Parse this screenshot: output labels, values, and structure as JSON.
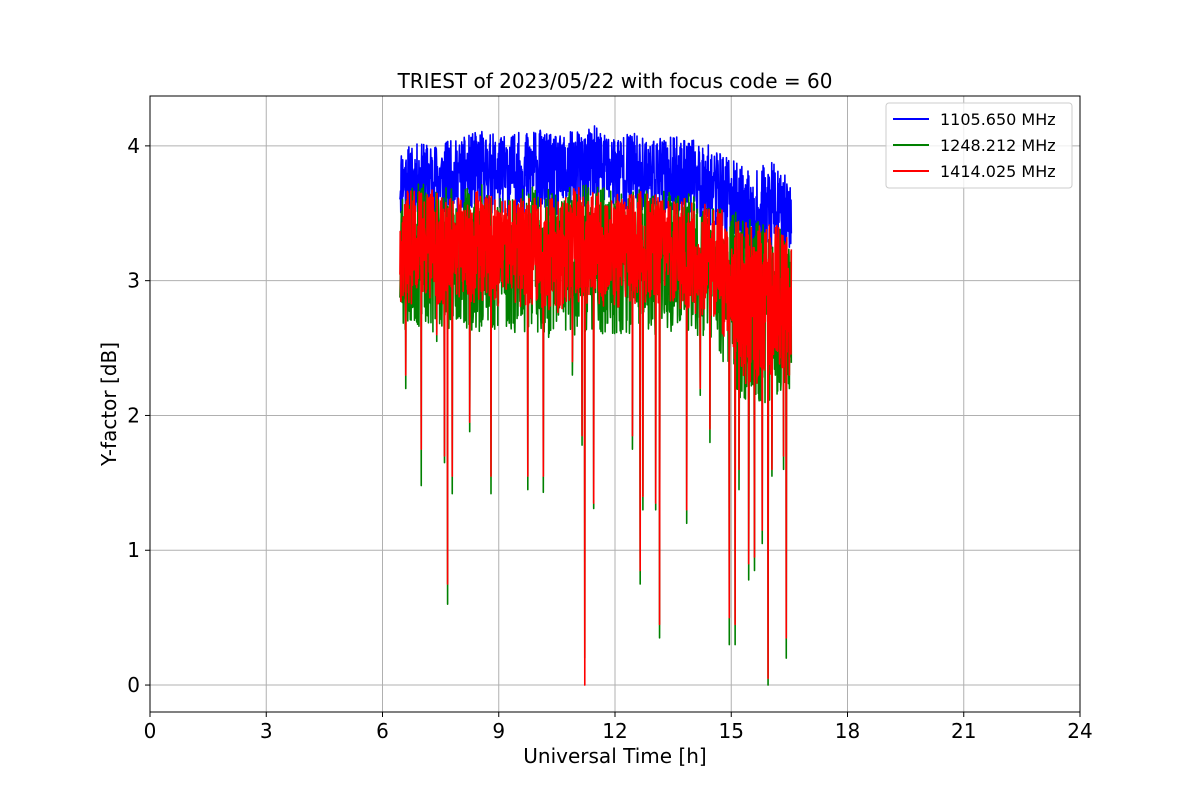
{
  "chart_data": {
    "type": "line",
    "title": "TRIEST of 2023/05/22 with focus code = 60",
    "xlabel": "Universal Time [h]",
    "ylabel": "Y-factor [dB]",
    "xlim": [
      0,
      24
    ],
    "ylim": [
      -0.2,
      4.37
    ],
    "xticks": [
      0,
      3,
      6,
      9,
      12,
      15,
      18,
      21,
      24
    ],
    "yticks": [
      0,
      1,
      2,
      3,
      4
    ],
    "grid": true,
    "legend": "top-right",
    "x_range": [
      6.45,
      16.55
    ],
    "series": [
      {
        "name": "1105.650 MHz",
        "color": "#0000ff",
        "envelope": {
          "x": [
            6.45,
            7.0,
            7.5,
            8.0,
            8.5,
            9.0,
            9.5,
            10.0,
            10.5,
            11.0,
            11.5,
            12.0,
            12.5,
            13.0,
            13.5,
            14.0,
            14.5,
            15.0,
            15.3,
            15.6,
            16.0,
            16.5
          ],
          "upper": [
            4.0,
            4.02,
            4.03,
            4.05,
            4.12,
            4.08,
            4.1,
            4.13,
            4.07,
            4.12,
            4.15,
            4.1,
            4.1,
            4.05,
            4.07,
            4.05,
            4.0,
            3.9,
            3.85,
            3.8,
            3.9,
            3.75
          ],
          "lower": [
            3.45,
            3.5,
            3.45,
            3.5,
            3.5,
            3.5,
            3.45,
            3.5,
            3.45,
            3.5,
            3.5,
            3.5,
            3.5,
            3.5,
            3.45,
            3.45,
            3.4,
            3.3,
            3.15,
            3.1,
            3.15,
            3.2
          ]
        },
        "dips": []
      },
      {
        "name": "1248.212 MHz",
        "color": "#008000",
        "envelope": {
          "x": [
            6.45,
            7.0,
            7.5,
            8.0,
            8.5,
            9.0,
            9.5,
            10.0,
            10.5,
            11.0,
            11.5,
            12.0,
            12.5,
            13.0,
            13.5,
            14.0,
            14.5,
            15.0,
            15.3,
            15.6,
            16.0,
            16.5
          ],
          "upper": [
            3.7,
            3.72,
            3.7,
            3.68,
            3.72,
            3.66,
            3.68,
            3.7,
            3.66,
            3.72,
            3.7,
            3.68,
            3.7,
            3.68,
            3.66,
            3.66,
            3.6,
            3.55,
            3.5,
            3.45,
            3.5,
            3.45
          ],
          "lower": [
            2.55,
            2.65,
            2.6,
            2.65,
            2.6,
            2.6,
            2.6,
            2.6,
            2.55,
            2.6,
            2.6,
            2.6,
            2.6,
            2.6,
            2.6,
            2.55,
            2.5,
            2.3,
            2.0,
            2.0,
            2.1,
            2.2
          ]
        },
        "dips": [
          [
            6.6,
            2.2
          ],
          [
            7.0,
            1.48
          ],
          [
            7.4,
            2.55
          ],
          [
            7.6,
            1.65
          ],
          [
            7.68,
            0.6
          ],
          [
            7.8,
            1.42
          ],
          [
            8.25,
            1.88
          ],
          [
            8.8,
            1.42
          ],
          [
            9.75,
            1.45
          ],
          [
            10.15,
            1.43
          ],
          [
            10.9,
            2.3
          ],
          [
            11.15,
            1.78
          ],
          [
            11.22,
            0.2
          ],
          [
            11.45,
            1.31
          ],
          [
            12.45,
            1.75
          ],
          [
            12.65,
            0.75
          ],
          [
            12.72,
            1.3
          ],
          [
            13.05,
            1.3
          ],
          [
            13.15,
            0.35
          ],
          [
            13.85,
            1.2
          ],
          [
            14.2,
            2.15
          ],
          [
            14.45,
            1.8
          ],
          [
            14.95,
            0.3
          ],
          [
            15.1,
            0.3
          ],
          [
            15.2,
            1.45
          ],
          [
            15.45,
            0.78
          ],
          [
            15.6,
            0.85
          ],
          [
            15.8,
            1.05
          ],
          [
            15.95,
            0.0
          ],
          [
            16.05,
            1.55
          ],
          [
            16.35,
            1.6
          ],
          [
            16.42,
            0.2
          ],
          [
            16.5,
            2.2
          ]
        ]
      },
      {
        "name": "1414.025 MHz",
        "color": "#ff0000",
        "envelope": {
          "x": [
            6.45,
            7.0,
            7.5,
            8.0,
            8.5,
            9.0,
            9.5,
            10.0,
            10.5,
            11.0,
            11.5,
            12.0,
            12.5,
            13.0,
            13.5,
            14.0,
            14.5,
            15.0,
            15.3,
            15.6,
            16.0,
            16.5
          ],
          "upper": [
            3.65,
            3.7,
            3.66,
            3.62,
            3.68,
            3.6,
            3.62,
            3.68,
            3.6,
            3.7,
            3.66,
            3.64,
            3.68,
            3.64,
            3.6,
            3.62,
            3.55,
            3.5,
            3.45,
            3.4,
            3.45,
            3.4
          ],
          "lower": [
            2.8,
            2.85,
            2.8,
            2.85,
            2.8,
            2.8,
            2.8,
            2.8,
            2.75,
            2.8,
            2.8,
            2.8,
            2.8,
            2.8,
            2.8,
            2.75,
            2.7,
            2.5,
            2.2,
            2.2,
            2.3,
            2.35
          ]
        },
        "dips": [
          [
            6.6,
            2.3
          ],
          [
            7.0,
            1.75
          ],
          [
            7.4,
            2.6
          ],
          [
            7.6,
            1.7
          ],
          [
            7.68,
            0.75
          ],
          [
            7.8,
            1.55
          ],
          [
            8.25,
            1.95
          ],
          [
            8.8,
            1.55
          ],
          [
            9.75,
            1.55
          ],
          [
            10.15,
            1.55
          ],
          [
            10.9,
            2.4
          ],
          [
            11.15,
            1.85
          ],
          [
            11.22,
            0.0
          ],
          [
            11.45,
            1.35
          ],
          [
            12.45,
            1.85
          ],
          [
            12.65,
            0.85
          ],
          [
            12.72,
            1.4
          ],
          [
            13.05,
            1.35
          ],
          [
            13.15,
            0.45
          ],
          [
            13.85,
            1.3
          ],
          [
            14.2,
            2.2
          ],
          [
            14.45,
            1.9
          ],
          [
            14.95,
            0.5
          ],
          [
            15.1,
            0.45
          ],
          [
            15.2,
            1.6
          ],
          [
            15.45,
            0.9
          ],
          [
            15.6,
            0.95
          ],
          [
            15.8,
            1.15
          ],
          [
            15.95,
            0.05
          ],
          [
            16.05,
            1.6
          ],
          [
            16.35,
            1.7
          ],
          [
            16.42,
            0.35
          ],
          [
            16.5,
            2.3
          ]
        ]
      }
    ]
  }
}
